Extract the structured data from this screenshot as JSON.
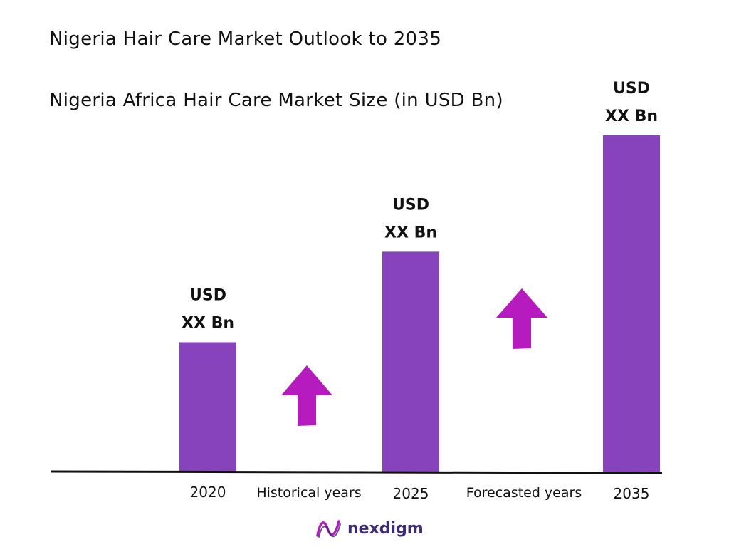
{
  "header": {
    "title": "Nigeria Hair Care Market Outlook to 2035",
    "subtitle": "Nigeria Africa Hair Care Market Size (in USD Bn)"
  },
  "chart_data": {
    "type": "bar",
    "categories": [
      "2020",
      "2025",
      "2035"
    ],
    "values": [
      1.0,
      1.7,
      2.6
    ],
    "value_labels": [
      {
        "line1": "USD",
        "line2": "XX Bn"
      },
      {
        "line1": "USD",
        "line2": "XX Bn"
      },
      {
        "line1": "USD",
        "line2": "XX Bn"
      }
    ],
    "segments": [
      {
        "label": "Historical years",
        "between": [
          "2020",
          "2025"
        ],
        "trend": "up"
      },
      {
        "label": "Forecasted years",
        "between": [
          "2025",
          "2035"
        ],
        "trend": "up"
      }
    ],
    "colors": {
      "bar": "#8743bc",
      "arrow": "#b61bbf",
      "axis": "#111111"
    },
    "grid": false,
    "legend": "none"
  },
  "logo": {
    "name": "nexdigm-logo-icon",
    "text": "nexdigm",
    "color": "#3b2a7a",
    "accent": "#b61bbf"
  }
}
